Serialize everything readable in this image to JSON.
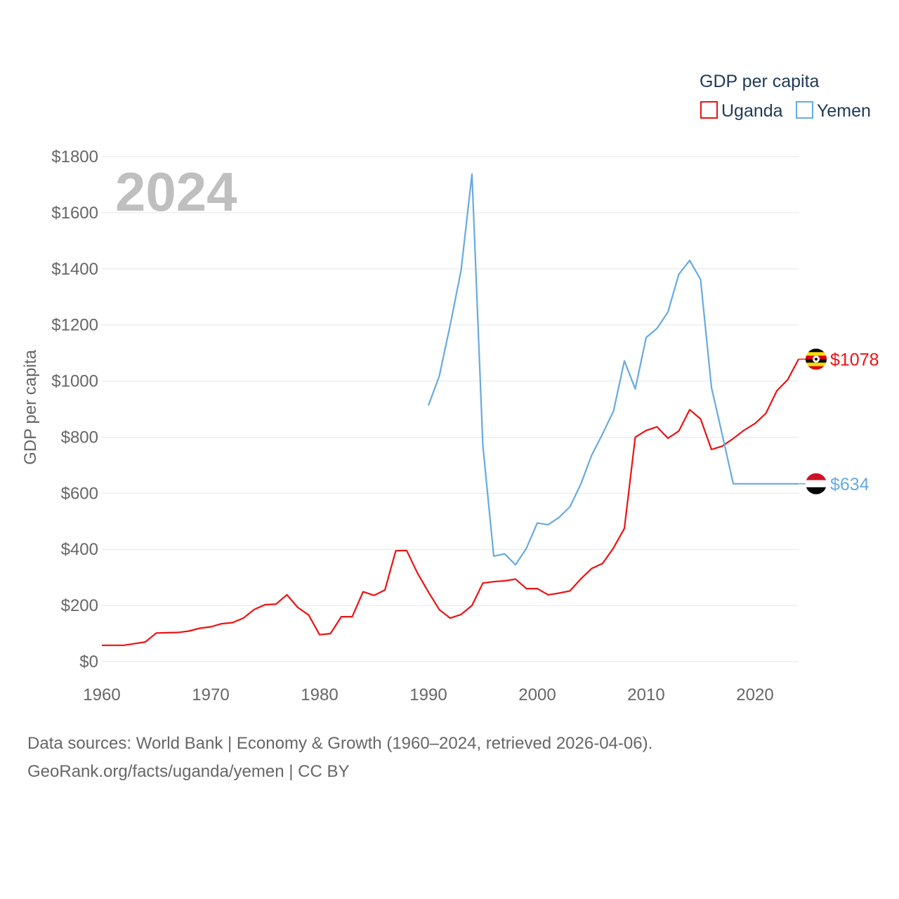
{
  "chart_data": {
    "type": "line",
    "title": "GDP per capita",
    "current_year": "2024",
    "xlabel": "",
    "ylabel": "GDP per capita",
    "xlim": [
      1960,
      2024
    ],
    "ylim": [
      0,
      1800
    ],
    "x_ticks": [
      1960,
      1970,
      1980,
      1990,
      2000,
      2010,
      2020
    ],
    "y_ticks": [
      0,
      200,
      400,
      600,
      800,
      1000,
      1200,
      1400,
      1600,
      1800
    ],
    "y_tick_labels": [
      "$0",
      "$200",
      "$400",
      "$600",
      "$800",
      "$1000",
      "$1200",
      "$1400",
      "$1600",
      "$1800"
    ],
    "legend_position": "top-right",
    "series": [
      {
        "name": "Uganda",
        "color": "#ee1111",
        "end_label": "$1078",
        "flag": "uganda-flag",
        "x": [
          1960,
          1961,
          1962,
          1963,
          1964,
          1965,
          1966,
          1967,
          1968,
          1969,
          1970,
          1971,
          1972,
          1973,
          1974,
          1975,
          1976,
          1977,
          1978,
          1979,
          1980,
          1981,
          1982,
          1983,
          1984,
          1985,
          1986,
          1987,
          1988,
          1989,
          1990,
          1991,
          1992,
          1993,
          1994,
          1995,
          1996,
          1997,
          1998,
          1999,
          2000,
          2001,
          2002,
          2003,
          2004,
          2005,
          2006,
          2007,
          2008,
          2009,
          2010,
          2011,
          2012,
          2013,
          2014,
          2015,
          2016,
          2017,
          2018,
          2019,
          2020,
          2021,
          2022,
          2023,
          2024
        ],
        "values": [
          58,
          58,
          58,
          64,
          70,
          102,
          103,
          104,
          109,
          119,
          124,
          135,
          139,
          155,
          186,
          203,
          205,
          238,
          193,
          166,
          96,
          100,
          160,
          160,
          249,
          236,
          255,
          395,
          396,
          315,
          248,
          185,
          155,
          168,
          200,
          280,
          285,
          288,
          294,
          260,
          260,
          238,
          244,
          252,
          295,
          332,
          350,
          405,
          475,
          800,
          824,
          837,
          796,
          822,
          898,
          865,
          756,
          768,
          795,
          825,
          849,
          885,
          965,
          1005,
          1078
        ]
      },
      {
        "name": "Yemen",
        "color": "#66aae2",
        "end_label": "$634",
        "flag": "yemen-flag",
        "x": [
          1990,
          1991,
          1992,
          1993,
          1994,
          1995,
          1996,
          1997,
          1998,
          1999,
          2000,
          2001,
          2002,
          2003,
          2004,
          2005,
          2006,
          2007,
          2008,
          2009,
          2010,
          2011,
          2012,
          2013,
          2014,
          2015,
          2016,
          2017,
          2018,
          2019,
          2020,
          2021,
          2022,
          2023,
          2024
        ],
        "values": [
          913,
          1018,
          1200,
          1395,
          1738,
          770,
          376,
          384,
          345,
          404,
          494,
          488,
          514,
          552,
          633,
          736,
          812,
          893,
          1072,
          972,
          1155,
          1188,
          1246,
          1381,
          1430,
          1362,
          977,
          807,
          634,
          634,
          634,
          634,
          634,
          634,
          634
        ]
      }
    ]
  },
  "footer": {
    "line1": "Data sources: World Bank | Economy & Growth (1960–2024, retrieved 2026-04-06).",
    "line2": "GeoRank.org/facts/uganda/yemen | CC BY"
  }
}
